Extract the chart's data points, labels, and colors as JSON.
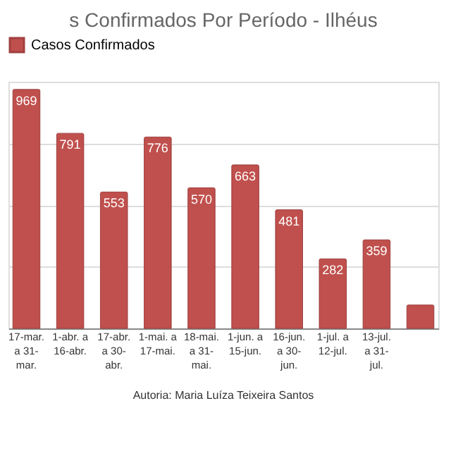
{
  "chart_data": {
    "type": "bar",
    "title": "s Confirmados Por Período - Ilhéus",
    "categories": [
      "17-mar. a 31-mar.",
      "1-abr. a 16-abr.",
      "17-abr. a 30-abr.",
      "1-mai. a 17-mai.",
      "18-mai. a 31-mai.",
      "1-jun. a 15-jun.",
      "16-jun. a 30-jun.",
      "1-jul. a 12-jul.",
      "13-jul. a 31-jul.",
      null
    ],
    "series": [
      {
        "name": "Casos Confirmados",
        "color": "#c0504d",
        "values": [
          969,
          791,
          553,
          776,
          570,
          663,
          481,
          282,
          359,
          95
        ],
        "value_labels": [
          "969",
          "791",
          "553",
          "776",
          "570",
          "663",
          "481",
          "282",
          "359",
          null
        ]
      }
    ],
    "ylim": [
      0,
      1000
    ],
    "yticks": [
      {
        "value": 0,
        "label": null
      },
      {
        "value": 250,
        "label": null
      },
      {
        "value": 500,
        "label": null
      },
      {
        "value": 750,
        "label": null
      },
      {
        "value": 1000,
        "label": null
      }
    ],
    "grid": "y",
    "legend": "top",
    "tick_labels": "x",
    "annotations": [
      "Autoria: Maria Luíza Teixeira Santos"
    ]
  }
}
